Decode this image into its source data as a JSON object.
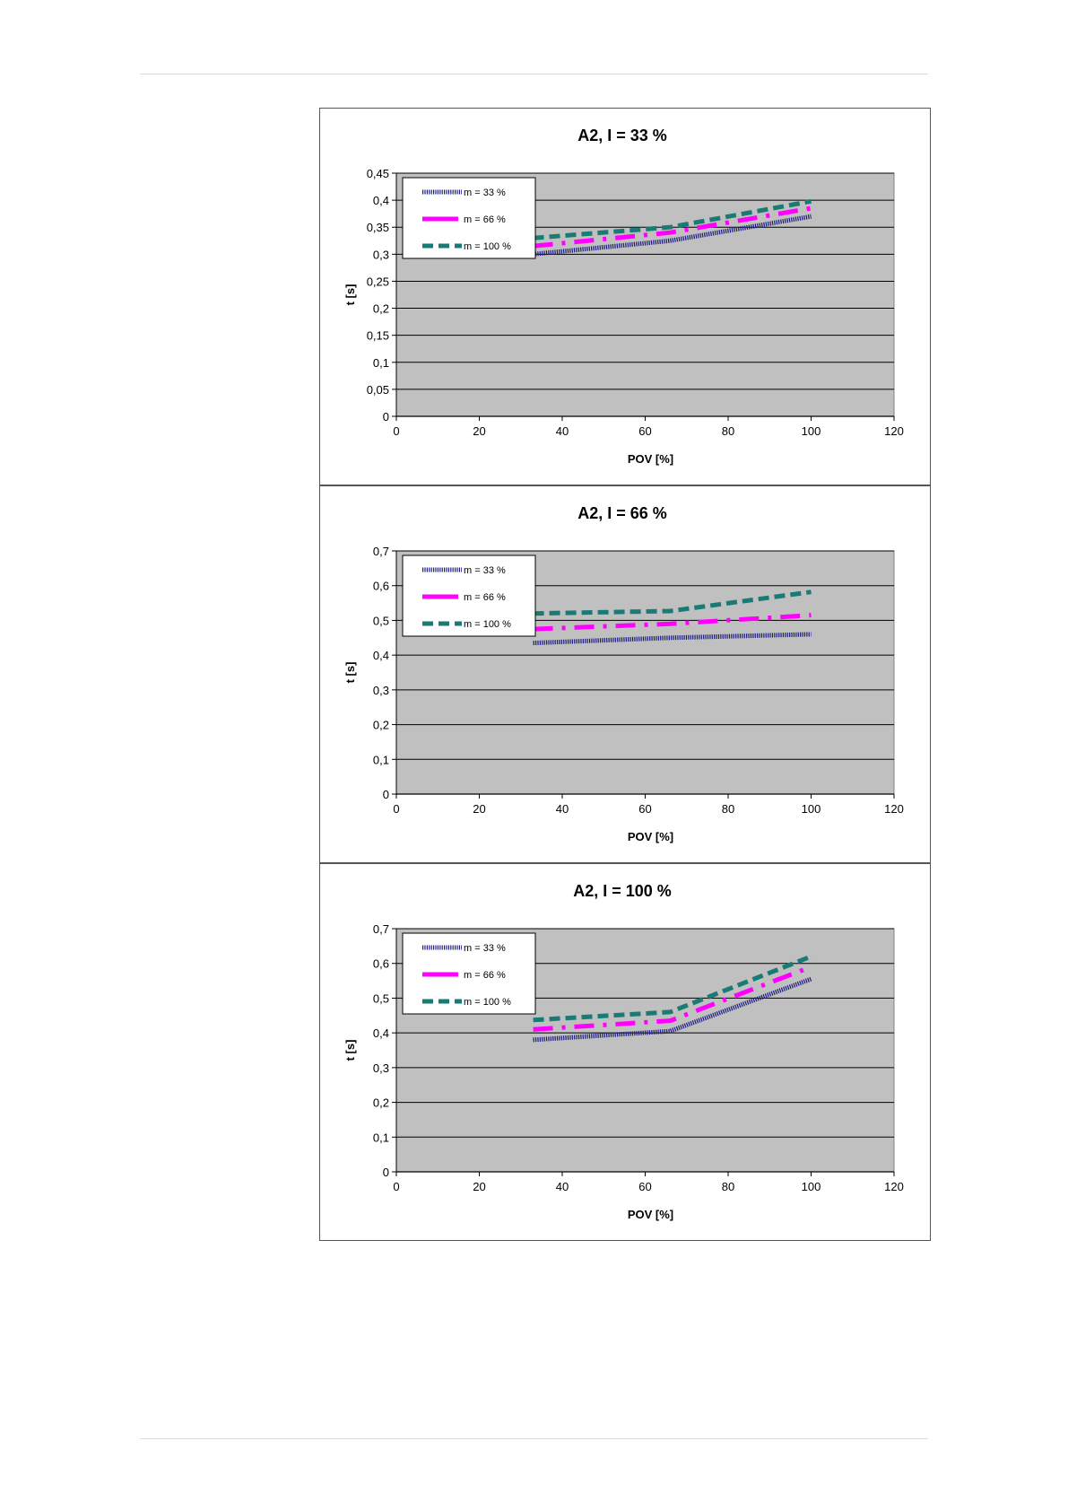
{
  "colors": {
    "plot_bg": "#c0c0c0",
    "grid": "#000000",
    "series_m33": "#1a1a80",
    "series_m66": "#ff00ff",
    "series_m100": "#1a7a74"
  },
  "chart_data": [
    {
      "type": "line",
      "title": "A2, I = 33 %",
      "xlabel": "POV [%]",
      "ylabel": "t [s]",
      "xlim": [
        0,
        120
      ],
      "ylim": [
        0,
        0.45
      ],
      "xticks": [
        0,
        20,
        40,
        60,
        80,
        100,
        120
      ],
      "xtick_labels": [
        "0",
        "20",
        "40",
        "60",
        "80",
        "100",
        "120"
      ],
      "yticks": [
        0,
        0.05,
        0.1,
        0.15,
        0.2,
        0.25,
        0.3,
        0.35,
        0.4,
        0.45
      ],
      "ytick_labels": [
        "0",
        "0,05",
        "0,1",
        "0,15",
        "0,2",
        "0,25",
        "0,3",
        "0,35",
        "0,4",
        "0,45"
      ],
      "grid": "horizontal",
      "legend": "top-left",
      "series": [
        {
          "name": "m = 33 %",
          "x": [
            33,
            66,
            100
          ],
          "values": [
            0.3,
            0.325,
            0.37
          ]
        },
        {
          "name": "m = 66 %",
          "x": [
            33,
            66,
            100
          ],
          "values": [
            0.315,
            0.34,
            0.385
          ]
        },
        {
          "name": "m = 100 %",
          "x": [
            33,
            66,
            100
          ],
          "values": [
            0.33,
            0.35,
            0.398
          ]
        }
      ]
    },
    {
      "type": "line",
      "title": "A2, I = 66 %",
      "xlabel": "POV [%]",
      "ylabel": "t [s]",
      "xlim": [
        0,
        120
      ],
      "ylim": [
        0,
        0.7
      ],
      "xticks": [
        0,
        20,
        40,
        60,
        80,
        100,
        120
      ],
      "xtick_labels": [
        "0",
        "20",
        "40",
        "60",
        "80",
        "100",
        "120"
      ],
      "yticks": [
        0,
        0.1,
        0.2,
        0.3,
        0.4,
        0.5,
        0.6,
        0.7
      ],
      "ytick_labels": [
        "0",
        "0,1",
        "0,2",
        "0,3",
        "0,4",
        "0,5",
        "0,6",
        "0,7"
      ],
      "grid": "horizontal",
      "legend": "top-left",
      "series": [
        {
          "name": "m = 33 %",
          "x": [
            33,
            66,
            100
          ],
          "values": [
            0.435,
            0.45,
            0.46
          ]
        },
        {
          "name": "m = 66 %",
          "x": [
            33,
            66,
            100
          ],
          "values": [
            0.475,
            0.49,
            0.515
          ]
        },
        {
          "name": "m = 100 %",
          "x": [
            33,
            66,
            100
          ],
          "values": [
            0.52,
            0.527,
            0.582
          ]
        }
      ]
    },
    {
      "type": "line",
      "title": "A2, I = 100 %",
      "xlabel": "POV [%]",
      "ylabel": "t [s]",
      "xlim": [
        0,
        120
      ],
      "ylim": [
        0,
        0.7
      ],
      "xticks": [
        0,
        20,
        40,
        60,
        80,
        100,
        120
      ],
      "xtick_labels": [
        "0",
        "20",
        "40",
        "60",
        "80",
        "100",
        "120"
      ],
      "yticks": [
        0,
        0.1,
        0.2,
        0.3,
        0.4,
        0.5,
        0.6,
        0.7
      ],
      "ytick_labels": [
        "0",
        "0,1",
        "0,2",
        "0,3",
        "0,4",
        "0,5",
        "0,6",
        "0,7"
      ],
      "grid": "horizontal",
      "legend": "top-left",
      "series": [
        {
          "name": "m = 33 %",
          "x": [
            33,
            66,
            100
          ],
          "values": [
            0.38,
            0.405,
            0.555
          ]
        },
        {
          "name": "m = 66 %",
          "x": [
            33,
            66,
            100
          ],
          "values": [
            0.41,
            0.435,
            0.59
          ]
        },
        {
          "name": "m = 100 %",
          "x": [
            33,
            66,
            100
          ],
          "values": [
            0.437,
            0.46,
            0.62
          ]
        }
      ]
    }
  ]
}
